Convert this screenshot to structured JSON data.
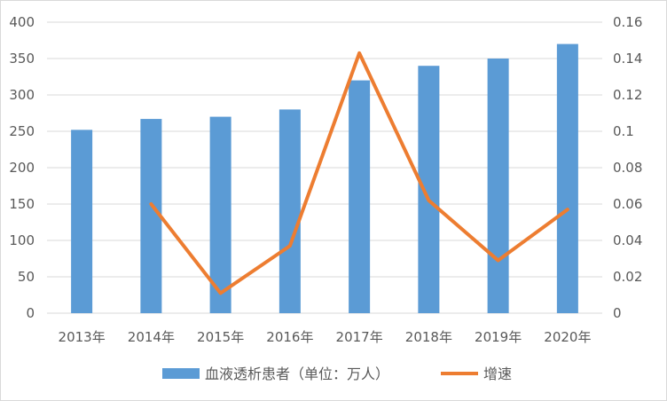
{
  "chart_data": {
    "type": "bar",
    "categories": [
      "2013年",
      "2014年",
      "2015年",
      "2016年",
      "2017年",
      "2018年",
      "2019年",
      "2020年"
    ],
    "series": [
      {
        "name": "血液透析患者（单位：万人）",
        "type": "bar",
        "axis": "left",
        "color": "#5B9BD5",
        "values": [
          252,
          267,
          270,
          280,
          320,
          340,
          350,
          370
        ]
      },
      {
        "name": "增速",
        "type": "line",
        "axis": "right",
        "color": "#ED7D31",
        "values": [
          null,
          0.06,
          0.011,
          0.037,
          0.143,
          0.062,
          0.029,
          0.057
        ]
      }
    ],
    "y_left": {
      "min": 0,
      "max": 400,
      "ticks": [
        "0",
        "50",
        "100",
        "150",
        "200",
        "250",
        "300",
        "350",
        "400"
      ]
    },
    "y_right": {
      "min": 0,
      "max": 0.16,
      "ticks": [
        "0",
        "0.02",
        "0.04",
        "0.06",
        "0.08",
        "0.1",
        "0.12",
        "0.14",
        "0.16"
      ]
    },
    "grid": true,
    "legend_position": "bottom"
  }
}
